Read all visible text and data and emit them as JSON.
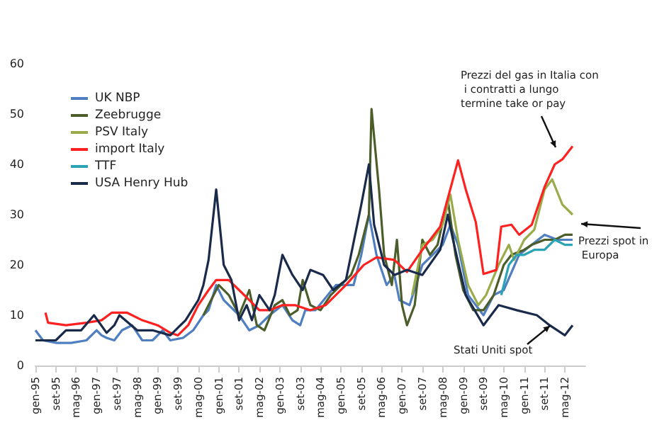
{
  "chart_data": {
    "type": "line",
    "xlim": [
      "1995-01",
      "2013-01"
    ],
    "xticks": [
      {
        "value": "1995-01",
        "label": "gen-95"
      },
      {
        "value": "1995-09",
        "label": "set-95"
      },
      {
        "value": "1996-05",
        "label": "mag-96"
      },
      {
        "value": "1997-01",
        "label": "gen-97"
      },
      {
        "value": "1997-09",
        "label": "set-97"
      },
      {
        "value": "1998-05",
        "label": "mag-98"
      },
      {
        "value": "1999-01",
        "label": "gen-99"
      },
      {
        "value": "1999-09",
        "label": "set-99"
      },
      {
        "value": "2000-05",
        "label": "mag-00"
      },
      {
        "value": "2001-01",
        "label": "gen-01"
      },
      {
        "value": "2001-09",
        "label": "set-01"
      },
      {
        "value": "2002-05",
        "label": "mag-02"
      },
      {
        "value": "2003-01",
        "label": "gen-03"
      },
      {
        "value": "2003-09",
        "label": "set-03"
      },
      {
        "value": "2004-05",
        "label": "mag-04"
      },
      {
        "value": "2005-01",
        "label": "gen-05"
      },
      {
        "value": "2005-09",
        "label": "set-05"
      },
      {
        "value": "2006-05",
        "label": "mag-06"
      },
      {
        "value": "2007-01",
        "label": "gen-07"
      },
      {
        "value": "2007-09",
        "label": "set-07"
      },
      {
        "value": "2008-05",
        "label": "mag-08"
      },
      {
        "value": "2009-01",
        "label": "gen-09"
      },
      {
        "value": "2009-09",
        "label": "set-09"
      },
      {
        "value": "2010-05",
        "label": "mag-10"
      },
      {
        "value": "2011-01",
        "label": "gen-11"
      },
      {
        "value": "2011-09",
        "label": "set-11"
      },
      {
        "value": "2012-05",
        "label": "mag-12"
      }
    ],
    "ylim": [
      0,
      60
    ],
    "yticks": [
      0,
      10,
      20,
      30,
      40,
      50,
      60
    ],
    "legend": "top left",
    "marker": "none",
    "line_style": "solid",
    "annotations": [
      "Prezzi del gas in Italia con i contratti a lungo termine take or pay",
      "Prezzi spot in Europa",
      "Stati Uniti spot"
    ],
    "series": [
      {
        "name": "UK NBP",
        "color": "#4f7fc0",
        "x": [
          "1995-01",
          "1995-04",
          "1995-09",
          "1996-03",
          "1996-09",
          "1997-01",
          "1997-03",
          "1997-05",
          "1997-08",
          "1997-11",
          "1998-03",
          "1998-07",
          "1998-11",
          "1999-03",
          "1999-06",
          "1999-11",
          "2000-03",
          "2000-07",
          "2000-09",
          "2000-12",
          "2001-03",
          "2001-09",
          "2002-01",
          "2002-05",
          "2002-09",
          "2003-02",
          "2003-06",
          "2003-09",
          "2003-11",
          "2004-03",
          "2004-11",
          "2005-06",
          "2005-09",
          "2005-12",
          "2006-03",
          "2006-07",
          "2006-10",
          "2006-12",
          "2007-04",
          "2007-09",
          "2008-01",
          "2008-05",
          "2008-08",
          "2008-11",
          "2009-03",
          "2009-09",
          "2010-01",
          "2010-05",
          "2010-11",
          "2011-04",
          "2011-09",
          "2012-02",
          "2012-08"
        ],
        "values": [
          7,
          5,
          4.5,
          4.5,
          5,
          7,
          6,
          5.5,
          5,
          7,
          8,
          5,
          5,
          7,
          5,
          5.5,
          7,
          10,
          11,
          16,
          13,
          10,
          7,
          8,
          10,
          12,
          9,
          8,
          11,
          11,
          16,
          16,
          22,
          30,
          22,
          16,
          18,
          13,
          12,
          20,
          22,
          24,
          28,
          24,
          14,
          10,
          14,
          15,
          22,
          24,
          26,
          25,
          25
        ]
      },
      {
        "name": "Zeebrugge",
        "color": "#4b5e2a",
        "x": [
          "2000-07",
          "2000-11",
          "2001-01",
          "2001-05",
          "2001-09",
          "2002-01",
          "2002-04",
          "2002-07",
          "2002-11",
          "2003-02",
          "2003-05",
          "2003-08",
          "2003-10",
          "2004-01",
          "2004-05",
          "2004-09",
          "2005-01",
          "2005-05",
          "2005-08",
          "2005-12",
          "2006-01",
          "2006-04",
          "2006-06",
          "2006-09",
          "2006-11",
          "2007-01",
          "2007-03",
          "2007-06",
          "2007-09",
          "2007-12",
          "2008-03",
          "2008-07",
          "2008-10",
          "2009-01",
          "2009-05",
          "2009-09",
          "2010-01",
          "2010-05",
          "2010-08",
          "2011-01",
          "2011-04",
          "2011-09",
          "2012-01",
          "2012-05",
          "2012-08"
        ],
        "values": [
          10,
          14,
          16,
          14,
          10,
          15,
          8,
          7,
          12,
          13,
          10,
          11,
          17,
          12,
          11,
          14,
          16,
          18,
          22,
          30,
          51,
          35,
          22,
          16,
          25,
          12,
          8,
          12,
          25,
          22,
          24,
          33,
          22,
          15,
          11,
          11,
          14,
          20,
          22,
          23,
          24,
          25,
          25,
          26,
          26
        ]
      },
      {
        "name": "PSV Italy",
        "color": "#9aab4a",
        "x": [
          "2007-05",
          "2007-09",
          "2008-01",
          "2008-05",
          "2008-08",
          "2008-11",
          "2009-03",
          "2009-07",
          "2009-10",
          "2010-03",
          "2010-07",
          "2010-09",
          "2011-01",
          "2011-05",
          "2011-09",
          "2011-12",
          "2012-04",
          "2012-08"
        ],
        "values": [
          14,
          24,
          25,
          28,
          34,
          25,
          16,
          12,
          14,
          20,
          24,
          21,
          25,
          27,
          35,
          37,
          32,
          30
        ]
      },
      {
        "name": "import Italy",
        "color": "#ff2020",
        "x": [
          "1995-05",
          "1995-06",
          "1996-01",
          "1996-09",
          "1997-03",
          "1997-07",
          "1998-01",
          "1998-07",
          "1999-01",
          "1999-06",
          "1999-09",
          "2000-01",
          "2000-05",
          "2000-09",
          "2000-12",
          "2001-05",
          "2001-09",
          "2002-01",
          "2002-05",
          "2002-09",
          "2003-02",
          "2003-07",
          "2004-01",
          "2004-07",
          "2005-03",
          "2005-10",
          "2006-03",
          "2006-10",
          "2007-03",
          "2007-09",
          "2008-04",
          "2008-11",
          "2009-02",
          "2009-06",
          "2009-09",
          "2010-02",
          "2010-04",
          "2010-08",
          "2010-11",
          "2011-04",
          "2011-09",
          "2012-01",
          "2012-04",
          "2012-08"
        ],
        "values": [
          10.5,
          8.5,
          8,
          8.5,
          9,
          10.5,
          10.5,
          9,
          8,
          6.5,
          6,
          8,
          12,
          15,
          17,
          17,
          15,
          13,
          11,
          11,
          12,
          12,
          11,
          12,
          16,
          20,
          21.5,
          21,
          18.6,
          23,
          27.6,
          40.8,
          35,
          28.5,
          18.2,
          19,
          27.6,
          28,
          26,
          28,
          35.5,
          40,
          41,
          43.6
        ]
      },
      {
        "name": "TTF",
        "color": "#2aa3b5",
        "x": [
          "2010-04",
          "2010-07",
          "2010-10",
          "2011-01",
          "2011-05",
          "2011-09",
          "2012-01",
          "2012-05",
          "2012-08"
        ],
        "values": [
          14,
          20,
          22,
          22,
          23,
          23,
          25,
          24,
          24
        ]
      },
      {
        "name": "USA Henry Hub",
        "color": "#1a2a4a",
        "x": [
          "1995-01",
          "1995-09",
          "1996-01",
          "1996-07",
          "1996-12",
          "1997-05",
          "1997-08",
          "1997-10",
          "1998-05",
          "1998-11",
          "1999-06",
          "1999-12",
          "2000-05",
          "2000-07",
          "2000-09",
          "2000-12",
          "2001-03",
          "2001-06",
          "2001-09",
          "2001-12",
          "2002-02",
          "2002-05",
          "2002-09",
          "2002-11",
          "2003-02",
          "2003-06",
          "2003-10",
          "2004-01",
          "2004-06",
          "2004-10",
          "2005-03",
          "2005-09",
          "2005-12",
          "2006-02",
          "2006-06",
          "2006-10",
          "2007-03",
          "2007-09",
          "2008-04",
          "2008-07",
          "2008-09",
          "2009-02",
          "2009-09",
          "2010-03",
          "2010-10",
          "2011-06",
          "2011-11",
          "2012-05",
          "2012-08"
        ],
        "values": [
          5,
          5,
          7,
          7,
          10,
          6.5,
          8,
          10,
          7,
          7,
          6,
          9,
          13,
          16,
          21,
          35,
          20,
          17,
          9,
          12,
          9,
          14,
          11,
          14,
          22,
          18,
          15,
          19,
          18,
          15,
          17,
          32,
          40,
          28,
          20,
          18,
          19,
          18,
          23,
          30,
          25,
          14,
          8,
          12,
          11,
          10,
          8,
          6,
          8
        ]
      }
    ]
  }
}
